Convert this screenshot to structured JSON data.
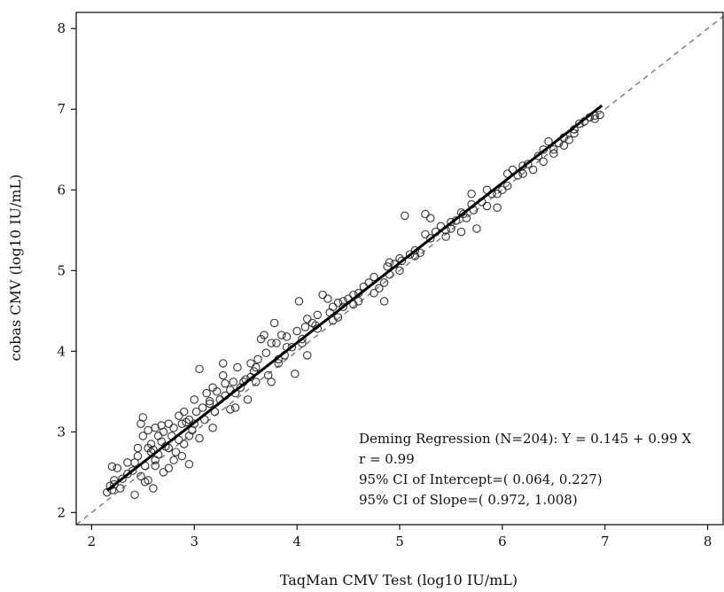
{
  "chart_data": {
    "type": "scatter",
    "title": "",
    "xlabel": "TaqMan CMV Test (log10 IU/mL)",
    "ylabel": "cobas CMV (log10 IU/mL)",
    "xlim": [
      1.85,
      8.15
    ],
    "ylim": [
      1.85,
      8.2
    ],
    "xticks": [
      2,
      3,
      4,
      5,
      6,
      7,
      8
    ],
    "yticks": [
      2,
      3,
      4,
      5,
      6,
      7,
      8
    ],
    "grid": false,
    "legend": "none",
    "marker_color": "#333333",
    "regression": {
      "label": "Deming Regression",
      "intercept": 0.145,
      "slope": 0.99,
      "x_range": [
        2.15,
        6.97
      ],
      "color": "#000000"
    },
    "identity_line": {
      "style": "dashed",
      "color": "#777777"
    },
    "annotations": [
      "Deming Regression (N=204): Y = 0.145 + 0.99 X",
      "r = 0.99",
      "95% CI of Intercept=( 0.064,  0.227)",
      "95% CI of Slope=( 0.972,  1.008)"
    ],
    "points": [
      [
        2.15,
        2.25
      ],
      [
        2.18,
        2.33
      ],
      [
        2.2,
        2.28
      ],
      [
        2.22,
        2.35
      ],
      [
        2.2,
        2.57
      ],
      [
        2.25,
        2.55
      ],
      [
        2.28,
        2.3
      ],
      [
        2.3,
        2.42
      ],
      [
        2.35,
        2.48
      ],
      [
        2.4,
        2.52
      ],
      [
        2.42,
        2.62
      ],
      [
        2.45,
        2.8
      ],
      [
        2.45,
        2.7
      ],
      [
        2.48,
        3.1
      ],
      [
        2.5,
        3.18
      ],
      [
        2.5,
        2.95
      ],
      [
        2.52,
        2.58
      ],
      [
        2.55,
        2.8
      ],
      [
        2.55,
        3.02
      ],
      [
        2.55,
        2.4
      ],
      [
        2.58,
        2.85
      ],
      [
        2.6,
        2.78
      ],
      [
        2.62,
        3.05
      ],
      [
        2.62,
        2.65
      ],
      [
        2.65,
        2.95
      ],
      [
        2.65,
        2.72
      ],
      [
        2.68,
        2.88
      ],
      [
        2.7,
        3.0
      ],
      [
        2.72,
        2.82
      ],
      [
        2.75,
        3.1
      ],
      [
        2.75,
        2.55
      ],
      [
        2.78,
        2.95
      ],
      [
        2.8,
        3.05
      ],
      [
        2.82,
        2.75
      ],
      [
        2.85,
        2.9
      ],
      [
        2.85,
        3.2
      ],
      [
        2.88,
        3.1
      ],
      [
        2.9,
        2.85
      ],
      [
        2.9,
        3.25
      ],
      [
        2.92,
        3.12
      ],
      [
        2.95,
        2.95
      ],
      [
        2.95,
        3.15
      ],
      [
        2.98,
        3.02
      ],
      [
        3.0,
        3.1
      ],
      [
        3.02,
        3.25
      ],
      [
        3.05,
        3.78
      ],
      [
        3.08,
        3.3
      ],
      [
        3.1,
        3.15
      ],
      [
        3.12,
        3.48
      ],
      [
        3.15,
        3.38
      ],
      [
        3.18,
        3.55
      ],
      [
        3.2,
        3.25
      ],
      [
        3.22,
        3.5
      ],
      [
        3.25,
        3.4
      ],
      [
        3.28,
        3.7
      ],
      [
        3.28,
        3.85
      ],
      [
        3.3,
        3.6
      ],
      [
        3.3,
        3.45
      ],
      [
        3.35,
        3.52
      ],
      [
        3.38,
        3.62
      ],
      [
        3.4,
        3.3
      ],
      [
        3.42,
        3.8
      ],
      [
        3.45,
        3.55
      ],
      [
        3.5,
        3.65
      ],
      [
        3.52,
        3.4
      ],
      [
        3.55,
        3.85
      ],
      [
        3.58,
        3.75
      ],
      [
        3.6,
        3.62
      ],
      [
        3.62,
        3.9
      ],
      [
        3.65,
        4.15
      ],
      [
        3.68,
        4.2
      ],
      [
        3.7,
        3.98
      ],
      [
        3.72,
        3.7
      ],
      [
        3.75,
        4.1
      ],
      [
        3.78,
        4.35
      ],
      [
        3.8,
        4.1
      ],
      [
        3.82,
        3.9
      ],
      [
        3.85,
        4.2
      ],
      [
        3.88,
        3.95
      ],
      [
        3.9,
        4.05
      ],
      [
        3.95,
        4.05
      ],
      [
        3.98,
        3.72
      ],
      [
        4.0,
        4.25
      ],
      [
        4.02,
        4.62
      ],
      [
        4.05,
        4.15
      ],
      [
        4.08,
        4.3
      ],
      [
        4.1,
        4.4
      ],
      [
        4.15,
        4.35
      ],
      [
        4.18,
        4.32
      ],
      [
        4.2,
        4.28
      ],
      [
        4.25,
        4.7
      ],
      [
        4.3,
        4.65
      ],
      [
        4.32,
        4.48
      ],
      [
        4.35,
        4.55
      ],
      [
        4.4,
        4.6
      ],
      [
        4.45,
        4.55
      ],
      [
        4.5,
        4.65
      ],
      [
        4.55,
        4.7
      ],
      [
        4.6,
        4.62
      ],
      [
        4.65,
        4.8
      ],
      [
        4.7,
        4.85
      ],
      [
        4.75,
        4.92
      ],
      [
        4.8,
        4.78
      ],
      [
        4.85,
        4.62
      ],
      [
        4.88,
        5.05
      ],
      [
        4.9,
        4.95
      ],
      [
        4.95,
        5.08
      ],
      [
        5.0,
        5.0
      ],
      [
        5.02,
        5.12
      ],
      [
        5.05,
        5.68
      ],
      [
        5.1,
        5.2
      ],
      [
        5.15,
        5.25
      ],
      [
        5.2,
        5.22
      ],
      [
        5.25,
        5.45
      ],
      [
        5.25,
        5.7
      ],
      [
        5.3,
        5.65
      ],
      [
        5.35,
        5.48
      ],
      [
        5.4,
        5.55
      ],
      [
        5.45,
        5.5
      ],
      [
        5.5,
        5.6
      ],
      [
        5.55,
        5.62
      ],
      [
        5.6,
        5.48
      ],
      [
        5.62,
        5.7
      ],
      [
        5.65,
        5.65
      ],
      [
        5.7,
        5.95
      ],
      [
        5.72,
        5.75
      ],
      [
        5.75,
        5.52
      ],
      [
        5.8,
        5.85
      ],
      [
        5.85,
        5.8
      ],
      [
        5.9,
        5.95
      ],
      [
        5.95,
        5.78
      ],
      [
        6.0,
        6.0
      ],
      [
        6.05,
        6.05
      ],
      [
        6.1,
        6.25
      ],
      [
        6.15,
        6.18
      ],
      [
        6.2,
        6.2
      ],
      [
        6.25,
        6.32
      ],
      [
        6.3,
        6.25
      ],
      [
        6.35,
        6.42
      ],
      [
        6.4,
        6.5
      ],
      [
        6.45,
        6.6
      ],
      [
        6.5,
        6.45
      ],
      [
        6.55,
        6.58
      ],
      [
        6.6,
        6.55
      ],
      [
        6.65,
        6.62
      ],
      [
        6.7,
        6.7
      ],
      [
        6.75,
        6.82
      ],
      [
        6.8,
        6.85
      ],
      [
        6.85,
        6.9
      ],
      [
        6.9,
        6.92
      ],
      [
        6.95,
        6.93
      ],
      [
        2.35,
        2.62
      ],
      [
        2.6,
        2.3
      ],
      [
        2.7,
        2.5
      ],
      [
        2.95,
        2.6
      ],
      [
        3.05,
        2.92
      ],
      [
        3.35,
        3.28
      ],
      [
        3.6,
        3.8
      ],
      [
        3.75,
        3.62
      ],
      [
        4.1,
        3.95
      ],
      [
        4.4,
        4.42
      ],
      [
        4.6,
        4.72
      ],
      [
        4.9,
        5.1
      ],
      [
        5.3,
        5.4
      ],
      [
        5.6,
        5.72
      ],
      [
        5.85,
        6.0
      ],
      [
        6.05,
        6.2
      ],
      [
        6.4,
        6.35
      ],
      [
        6.7,
        6.75
      ],
      [
        2.22,
        2.4
      ],
      [
        2.48,
        2.45
      ],
      [
        2.58,
        2.75
      ],
      [
        2.68,
        3.08
      ],
      [
        2.8,
        2.65
      ],
      [
        3.0,
        3.4
      ],
      [
        3.18,
        3.05
      ],
      [
        3.48,
        3.62
      ],
      [
        3.9,
        4.18
      ],
      [
        4.2,
        4.45
      ],
      [
        4.45,
        4.62
      ],
      [
        4.75,
        4.72
      ],
      [
        5.0,
        5.15
      ],
      [
        5.45,
        5.42
      ],
      [
        5.7,
        5.82
      ],
      [
        6.2,
        6.3
      ],
      [
        6.6,
        6.65
      ],
      [
        2.42,
        2.22
      ],
      [
        2.52,
        2.38
      ],
      [
        2.62,
        2.58
      ],
      [
        2.75,
        2.8
      ],
      [
        2.88,
        2.7
      ],
      [
        3.15,
        3.35
      ],
      [
        3.4,
        3.48
      ],
      [
        3.55,
        3.68
      ],
      [
        3.82,
        3.85
      ],
      [
        4.05,
        4.1
      ],
      [
        4.35,
        4.38
      ],
      [
        4.55,
        4.58
      ],
      [
        4.85,
        4.85
      ],
      [
        5.15,
        5.18
      ],
      [
        5.5,
        5.52
      ],
      [
        5.95,
        5.95
      ],
      [
        6.5,
        6.5
      ],
      [
        6.9,
        6.88
      ]
    ]
  }
}
